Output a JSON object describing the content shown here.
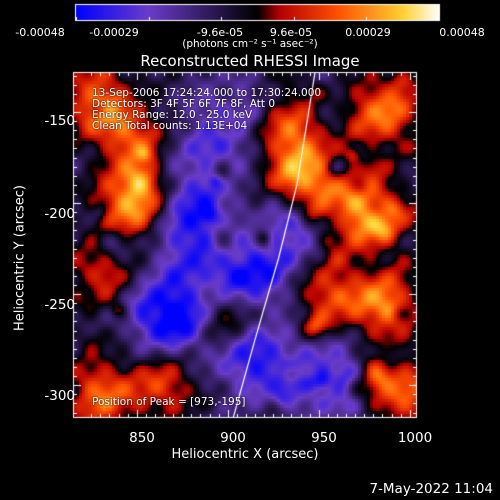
{
  "title": "Reconstructed RHESSI Image",
  "colorbar": {
    "tick_labels": [
      "-0.00048",
      "-0.00029",
      "-9.6e-05",
      "9.6e-05",
      "0.00029",
      "0.00048"
    ],
    "units_label": "(photons cm⁻² s⁻¹ asec⁻²)"
  },
  "annotations": [
    "13-Sep-2006 17:24:24.000 to 17:30:24.000",
    "Detectors: 3F 4F 5F 6F 7F 8F, Att 0",
    "Energy Range: 12.0 - 25.0 keV",
    "Clean     Total counts: 1.13E+04"
  ],
  "peak_label": "Position of Peak = [973,-195]",
  "date_stamp": "7-May-2022 11:04",
  "chart_data": {
    "type": "heatmap",
    "title": "Reconstructed RHESSI Image",
    "xlabel": "Heliocentric X (arcsec)",
    "ylabel": "Heliocentric Y (arcsec)",
    "xlim": [
      815,
      1004
    ],
    "ylim": [
      -318,
      -128
    ],
    "x_ticks": [
      850,
      900,
      950,
      1000
    ],
    "y_ticks": [
      -150,
      -200,
      -250,
      -300
    ],
    "color_range": [
      -0.00048,
      0.00048
    ],
    "colormap": [
      "#0000ff",
      "#6a3cc8",
      "#000000",
      "#b40000",
      "#ff5000",
      "#ffd232",
      "#ffffff"
    ],
    "peak": {
      "x": 973,
      "y": -195
    },
    "limb_curve": {
      "x": [
        903,
        915,
        928,
        938,
        948
      ],
      "y": [
        -318,
        -275,
        -230,
        -190,
        -128
      ]
    },
    "hot_regions": [
      {
        "x": 830,
        "y": -145,
        "level": 0.8
      },
      {
        "x": 848,
        "y": -200,
        "level": 0.95
      },
      {
        "x": 848,
        "y": -165,
        "level": 0.6
      },
      {
        "x": 940,
        "y": -185,
        "level": 0.9
      },
      {
        "x": 935,
        "y": -160,
        "level": 0.6
      },
      {
        "x": 975,
        "y": -205,
        "level": 1.0
      },
      {
        "x": 985,
        "y": -150,
        "level": 0.85
      },
      {
        "x": 985,
        "y": -255,
        "level": 0.8
      },
      {
        "x": 955,
        "y": -250,
        "level": 0.6
      },
      {
        "x": 828,
        "y": -240,
        "level": 0.55
      },
      {
        "x": 830,
        "y": -305,
        "level": 0.75
      },
      {
        "x": 865,
        "y": -300,
        "level": 0.6
      },
      {
        "x": 998,
        "y": -305,
        "level": 0.7
      },
      {
        "x": 900,
        "y": -265,
        "level": 0.5
      }
    ],
    "cold_regions": [
      {
        "x": 870,
        "y": -262,
        "level": 0.9
      },
      {
        "x": 915,
        "y": -285,
        "level": 0.7
      },
      {
        "x": 880,
        "y": -225,
        "level": 0.5
      },
      {
        "x": 915,
        "y": -240,
        "level": 0.6
      },
      {
        "x": 895,
        "y": -165,
        "level": 0.5
      },
      {
        "x": 955,
        "y": -295,
        "level": 0.5
      },
      {
        "x": 880,
        "y": -200,
        "level": 0.55
      },
      {
        "x": 930,
        "y": -215,
        "level": 0.45
      }
    ]
  }
}
